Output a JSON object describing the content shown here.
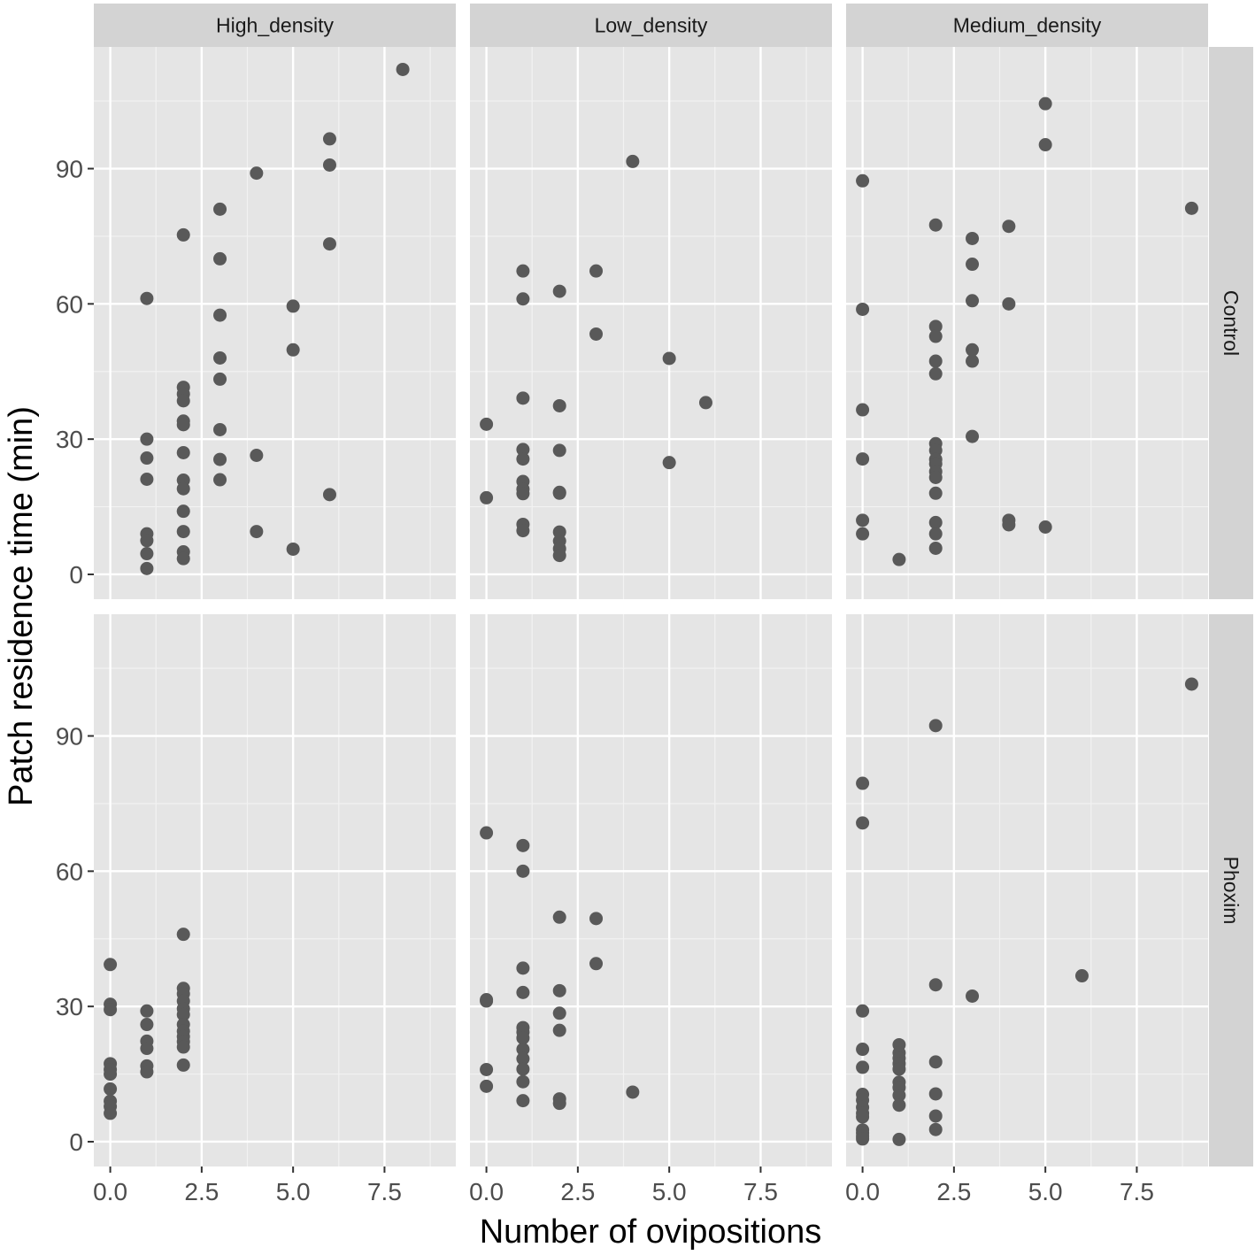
{
  "chart_data": {
    "type": "scatter",
    "layout": "facet_grid",
    "xlabel": "Number of ovipositions",
    "ylabel": "Patch residence time (min)",
    "xlim": [
      -0.45,
      9.45
    ],
    "ylim": [
      -5.5,
      117
    ],
    "x_ticks": [
      0,
      2.5,
      5,
      7.5
    ],
    "x_tick_labels": [
      "0.0",
      "2.5",
      "5.0",
      "7.5"
    ],
    "y_ticks": [
      0,
      30,
      60,
      90
    ],
    "y_tick_labels": [
      "0",
      "30",
      "60",
      "90"
    ],
    "column_facets": [
      "High_density",
      "Low_density",
      "Medium_density"
    ],
    "row_facets": [
      "Control",
      "Phoxim"
    ],
    "grid": true,
    "point_color": "#595959",
    "panel_background": "#e5e5e5",
    "strip_background": "#d3d3d3",
    "panels": [
      {
        "column": "High_density",
        "row": "Control",
        "points": [
          [
            1,
            61.2
          ],
          [
            1,
            30
          ],
          [
            1,
            25.8
          ],
          [
            1,
            21.1
          ],
          [
            1,
            9
          ],
          [
            1,
            7.5
          ],
          [
            1,
            4.6
          ],
          [
            1,
            1.3
          ],
          [
            2,
            75.3
          ],
          [
            2,
            41.5
          ],
          [
            2,
            40
          ],
          [
            2,
            38.5
          ],
          [
            2,
            34
          ],
          [
            2,
            33.2
          ],
          [
            2,
            27
          ],
          [
            2,
            20.9
          ],
          [
            2,
            19
          ],
          [
            2,
            14
          ],
          [
            2,
            9.5
          ],
          [
            2,
            5
          ],
          [
            2,
            3.5
          ],
          [
            3,
            81
          ],
          [
            3,
            70
          ],
          [
            3,
            57.5
          ],
          [
            3,
            48
          ],
          [
            3,
            43.3
          ],
          [
            3,
            32.1
          ],
          [
            3,
            25.5
          ],
          [
            3,
            21
          ],
          [
            4,
            89
          ],
          [
            4,
            26.4
          ],
          [
            4,
            9.5
          ],
          [
            5,
            59.5
          ],
          [
            5,
            49.8
          ],
          [
            5,
            5.6
          ],
          [
            6,
            96.6
          ],
          [
            6,
            90.8
          ],
          [
            6,
            73.3
          ],
          [
            6,
            17.7
          ],
          [
            8,
            112
          ]
        ]
      },
      {
        "column": "Low_density",
        "row": "Control",
        "points": [
          [
            0,
            33.3
          ],
          [
            0,
            17
          ],
          [
            1,
            67.3
          ],
          [
            1,
            61.1
          ],
          [
            1,
            39.1
          ],
          [
            1,
            27.7
          ],
          [
            1,
            25.6
          ],
          [
            1,
            20.6
          ],
          [
            1,
            18.9
          ],
          [
            1,
            17.9
          ],
          [
            1,
            11.1
          ],
          [
            1,
            9.7
          ],
          [
            2,
            62.8
          ],
          [
            2,
            37.4
          ],
          [
            2,
            27.5
          ],
          [
            2,
            18.2
          ],
          [
            2,
            18
          ],
          [
            2,
            9.4
          ],
          [
            2,
            7.4
          ],
          [
            2,
            5.7
          ],
          [
            2,
            4.2
          ],
          [
            3,
            67.3
          ],
          [
            3,
            53.3
          ],
          [
            4,
            91.6
          ],
          [
            5,
            47.9
          ],
          [
            5,
            24.8
          ],
          [
            6,
            38.1
          ]
        ]
      },
      {
        "column": "Medium_density",
        "row": "Control",
        "points": [
          [
            0,
            87.3
          ],
          [
            0,
            58.8
          ],
          [
            0,
            36.5
          ],
          [
            0,
            25.6
          ],
          [
            0,
            12
          ],
          [
            0,
            9
          ],
          [
            1,
            3.3
          ],
          [
            2,
            77.5
          ],
          [
            2,
            55
          ],
          [
            2,
            52.8
          ],
          [
            2,
            47.3
          ],
          [
            2,
            44.5
          ],
          [
            2,
            29
          ],
          [
            2,
            27.5
          ],
          [
            2,
            25.5
          ],
          [
            2,
            24.5
          ],
          [
            2,
            22.8
          ],
          [
            2,
            21.5
          ],
          [
            2,
            18
          ],
          [
            2,
            11.5
          ],
          [
            2,
            9
          ],
          [
            2,
            5.8
          ],
          [
            3,
            74.5
          ],
          [
            3,
            68.8
          ],
          [
            3,
            60.7
          ],
          [
            3,
            49.8
          ],
          [
            3,
            47.3
          ],
          [
            3,
            30.6
          ],
          [
            4,
            77.2
          ],
          [
            4,
            60
          ],
          [
            4,
            12
          ],
          [
            4,
            11
          ],
          [
            5,
            104.4
          ],
          [
            5,
            95.3
          ],
          [
            5,
            10.5
          ],
          [
            9,
            81.2
          ]
        ]
      },
      {
        "column": "High_density",
        "row": "Phoxim",
        "points": [
          [
            0,
            39.3
          ],
          [
            0,
            30.5
          ],
          [
            0,
            29.3
          ],
          [
            0,
            17.3
          ],
          [
            0,
            16
          ],
          [
            0,
            15
          ],
          [
            0,
            11.7
          ],
          [
            0,
            9
          ],
          [
            0,
            7.8
          ],
          [
            0,
            6.3
          ],
          [
            1,
            29
          ],
          [
            1,
            26
          ],
          [
            1,
            22.3
          ],
          [
            1,
            20.7
          ],
          [
            1,
            16.8
          ],
          [
            1,
            15.5
          ],
          [
            2,
            46
          ],
          [
            2,
            34
          ],
          [
            2,
            32.8
          ],
          [
            2,
            31.2
          ],
          [
            2,
            29.5
          ],
          [
            2,
            28.2
          ],
          [
            2,
            26
          ],
          [
            2,
            24.5
          ],
          [
            2,
            23.3
          ],
          [
            2,
            22.2
          ],
          [
            2,
            21
          ],
          [
            2,
            17
          ]
        ]
      },
      {
        "column": "Low_density",
        "row": "Phoxim",
        "points": [
          [
            0,
            68.5
          ],
          [
            0,
            31.5
          ],
          [
            0,
            31.2
          ],
          [
            0,
            16
          ],
          [
            0,
            12.3
          ],
          [
            1,
            65.7
          ],
          [
            1,
            60
          ],
          [
            1,
            38.5
          ],
          [
            1,
            33.1
          ],
          [
            1,
            25.3
          ],
          [
            1,
            24.3
          ],
          [
            1,
            23
          ],
          [
            1,
            20.5
          ],
          [
            1,
            18.4
          ],
          [
            1,
            16.1
          ],
          [
            1,
            13.3
          ],
          [
            1,
            9.1
          ],
          [
            2,
            49.8
          ],
          [
            2,
            33.5
          ],
          [
            2,
            28.5
          ],
          [
            2,
            24.7
          ],
          [
            2,
            9.5
          ],
          [
            2,
            8.5
          ],
          [
            3,
            49.5
          ],
          [
            3,
            39.5
          ],
          [
            4,
            11
          ]
        ]
      },
      {
        "column": "Medium_density",
        "row": "Phoxim",
        "points": [
          [
            0,
            79.5
          ],
          [
            0,
            70.7
          ],
          [
            0,
            29
          ],
          [
            0,
            20.5
          ],
          [
            0,
            16.5
          ],
          [
            0,
            10.5
          ],
          [
            0,
            9.2
          ],
          [
            0,
            7.6
          ],
          [
            0,
            6.3
          ],
          [
            0,
            5.5
          ],
          [
            0,
            2.6
          ],
          [
            0,
            1.9
          ],
          [
            0,
            1.2
          ],
          [
            0,
            0.6
          ],
          [
            1,
            21.5
          ],
          [
            1,
            19.7
          ],
          [
            1,
            18.5
          ],
          [
            1,
            17.3
          ],
          [
            1,
            16.1
          ],
          [
            1,
            13.2
          ],
          [
            1,
            12
          ],
          [
            1,
            10.3
          ],
          [
            1,
            8.1
          ],
          [
            1,
            0.5
          ],
          [
            2,
            92.3
          ],
          [
            2,
            34.8
          ],
          [
            2,
            17.7
          ],
          [
            2,
            10.6
          ],
          [
            2,
            5.7
          ],
          [
            2,
            2.7
          ],
          [
            3,
            32.3
          ],
          [
            6,
            36.8
          ],
          [
            9,
            101.5
          ]
        ]
      }
    ]
  }
}
